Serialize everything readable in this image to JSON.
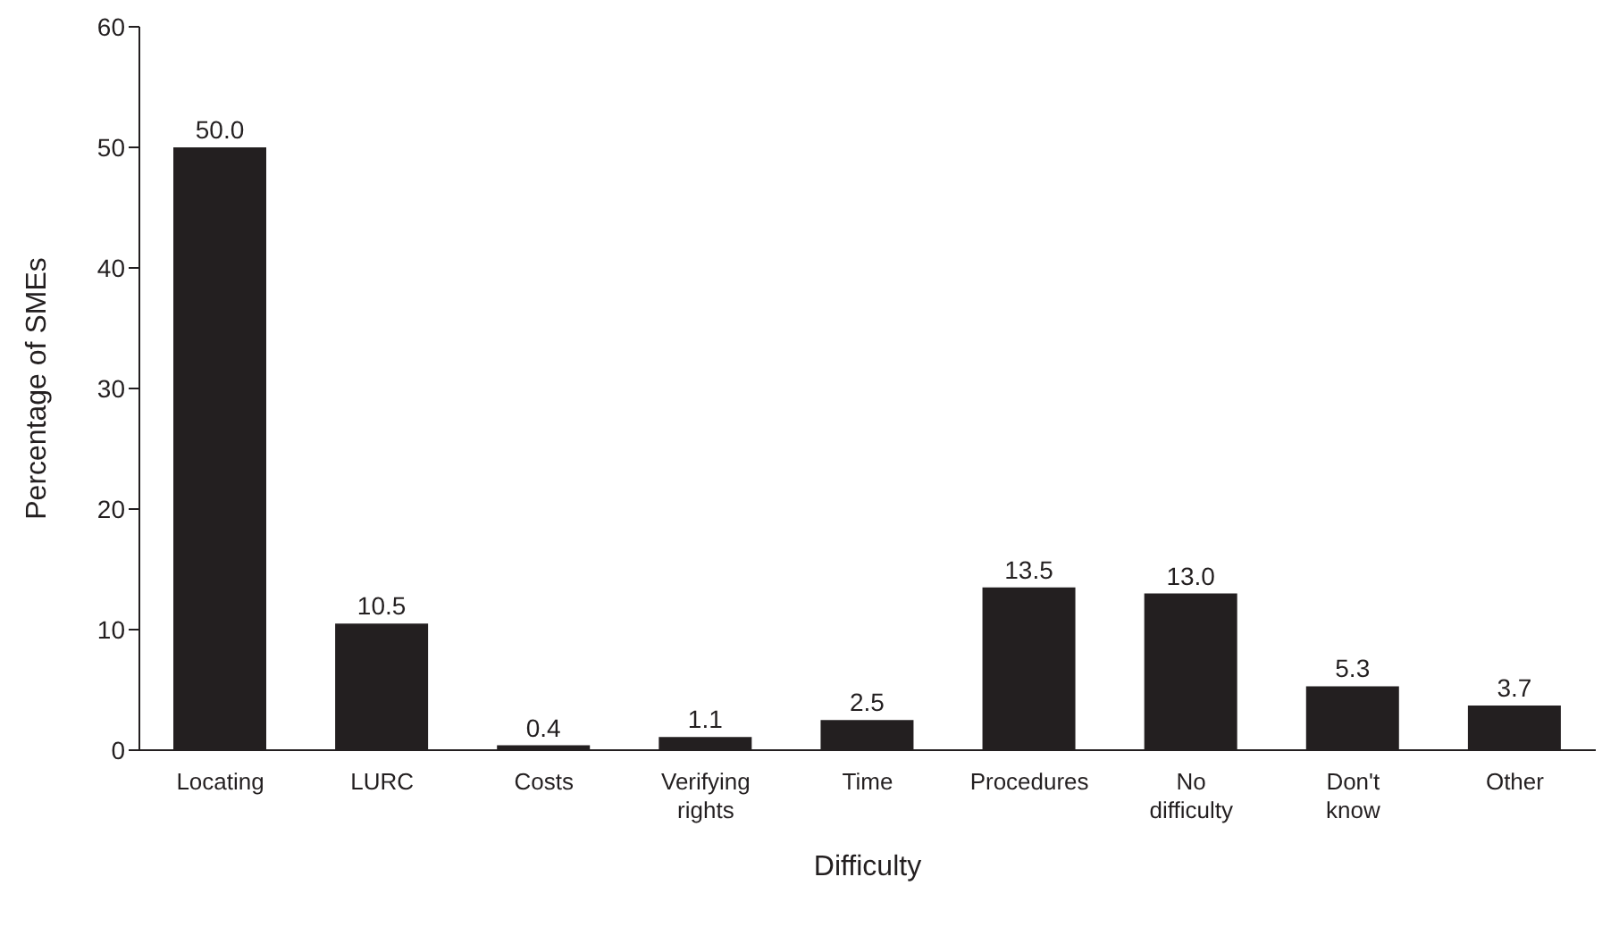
{
  "chart_data": {
    "type": "bar",
    "xlabel": "Difficulty",
    "ylabel": "Percentage of SMEs",
    "categories": [
      "Locating",
      "LURC",
      "Costs",
      "Verifying rights",
      "Time",
      "Procedures",
      "No difficulty",
      "Don't know",
      "Other"
    ],
    "values": [
      50.0,
      10.5,
      0.4,
      1.1,
      2.5,
      13.5,
      13.0,
      5.3,
      3.7
    ],
    "value_labels": [
      "50.0",
      "10.5",
      "0.4",
      "1.1",
      "2.5",
      "13.5",
      "13.0",
      "5.3",
      "3.7"
    ],
    "color": "#231f20",
    "ylim": [
      0,
      60
    ],
    "yticks": [
      0,
      10,
      20,
      30,
      40,
      50,
      60
    ],
    "grid": false,
    "legend": false
  }
}
